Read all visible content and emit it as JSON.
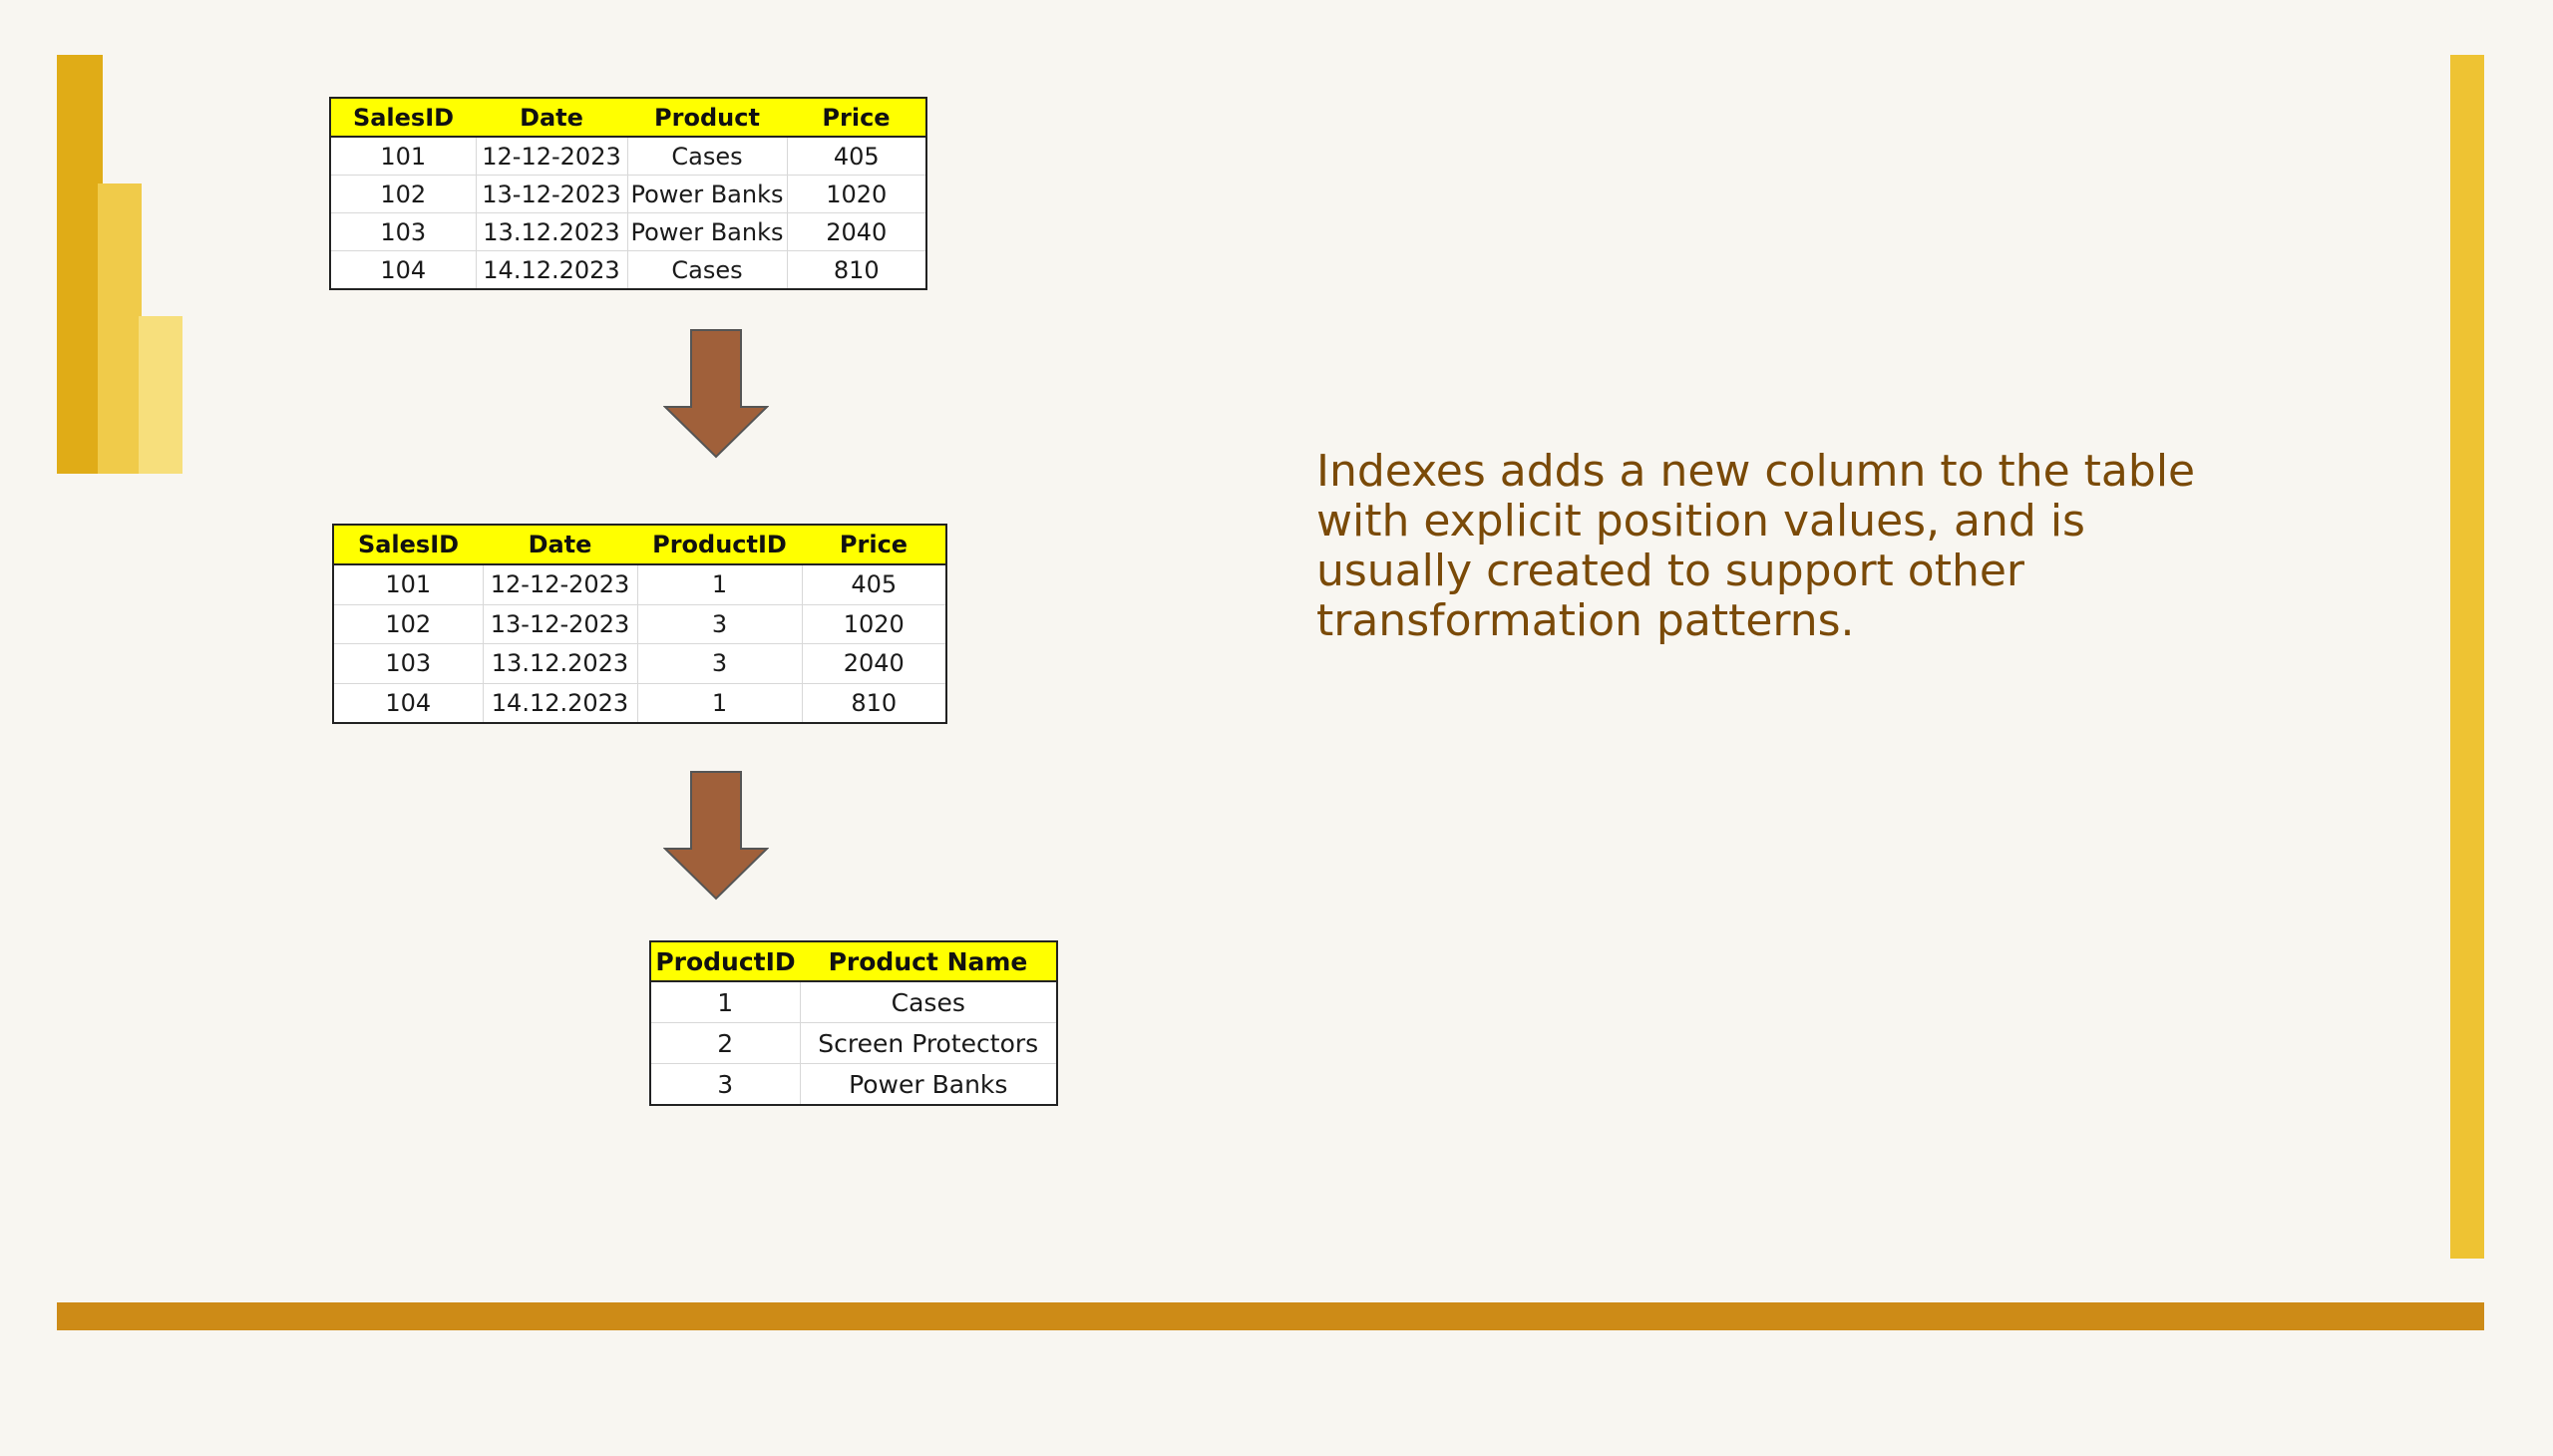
{
  "tables": {
    "sales": {
      "headers": [
        "SalesID",
        "Date",
        "Product",
        "Price"
      ],
      "rows": [
        [
          "101",
          "12-12-2023",
          "Cases",
          "405"
        ],
        [
          "102",
          "13-12-2023",
          "Power Banks",
          "1020"
        ],
        [
          "103",
          "13.12.2023",
          "Power Banks",
          "2040"
        ],
        [
          "104",
          "14.12.2023",
          "Cases",
          "810"
        ]
      ]
    },
    "sales_ids": {
      "headers": [
        "SalesID",
        "Date",
        "ProductID",
        "Price"
      ],
      "rows": [
        [
          "101",
          "12-12-2023",
          "1",
          "405"
        ],
        [
          "102",
          "13-12-2023",
          "3",
          "1020"
        ],
        [
          "103",
          "13.12.2023",
          "3",
          "2040"
        ],
        [
          "104",
          "14.12.2023",
          "1",
          "810"
        ]
      ]
    },
    "products": {
      "headers": [
        "ProductID",
        "Product Name"
      ],
      "rows": [
        [
          "1",
          "Cases"
        ],
        [
          "2",
          "Screen Protectors"
        ],
        [
          "3",
          "Power Banks"
        ]
      ]
    }
  },
  "description": "Indexes adds a new column to the table with explicit position values, and is usually created to support other transformation patterns.",
  "colors": {
    "background": "#f8f6f1",
    "header_fill": "#ffff00",
    "arrow": "#a0603a",
    "text": "#7a4a08",
    "frame_right": "#eec333",
    "frame_bottom": "#cd8b17",
    "logo": [
      "#e0ac17",
      "#f0cb4a",
      "#f7df7c"
    ]
  },
  "icons": [
    "down-arrow-icon",
    "power-bi-logo-icon"
  ]
}
